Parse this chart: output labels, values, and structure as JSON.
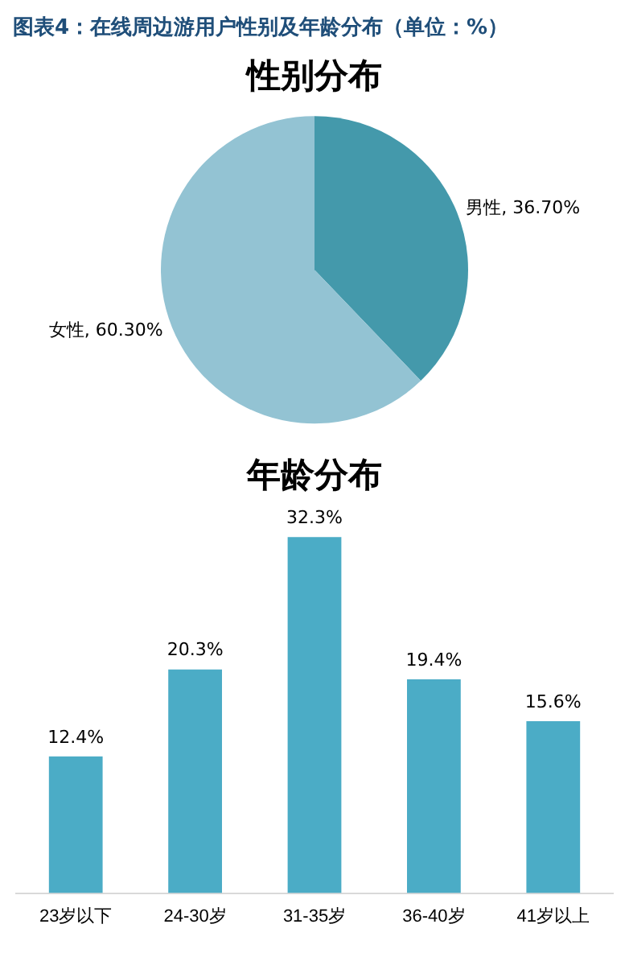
{
  "chart_data": [
    {
      "type": "pie",
      "title": "性别分布",
      "annotations": [
        "图表4：在线周边游用户性别及年龄分布（单位：%）"
      ],
      "categories": [
        "男性",
        "女性"
      ],
      "values": [
        36.7,
        60.3
      ],
      "colors": [
        "#4499ab",
        "#93c3d3"
      ],
      "value_labels": [
        "36.70%",
        "60.30%"
      ],
      "legend": false
    },
    {
      "type": "bar",
      "title": "年龄分布",
      "categories": [
        "23岁以下",
        "24-30岁",
        "31-35岁",
        "36-40岁",
        "41岁以上"
      ],
      "values": [
        12.4,
        20.3,
        32.3,
        19.4,
        15.6
      ],
      "color": "#4bacc6",
      "value_labels": [
        "12.4%",
        "20.3%",
        "32.3%",
        "19.4%",
        "15.6%"
      ],
      "tick_labels": "x",
      "grid": false,
      "legend": false
    }
  ]
}
